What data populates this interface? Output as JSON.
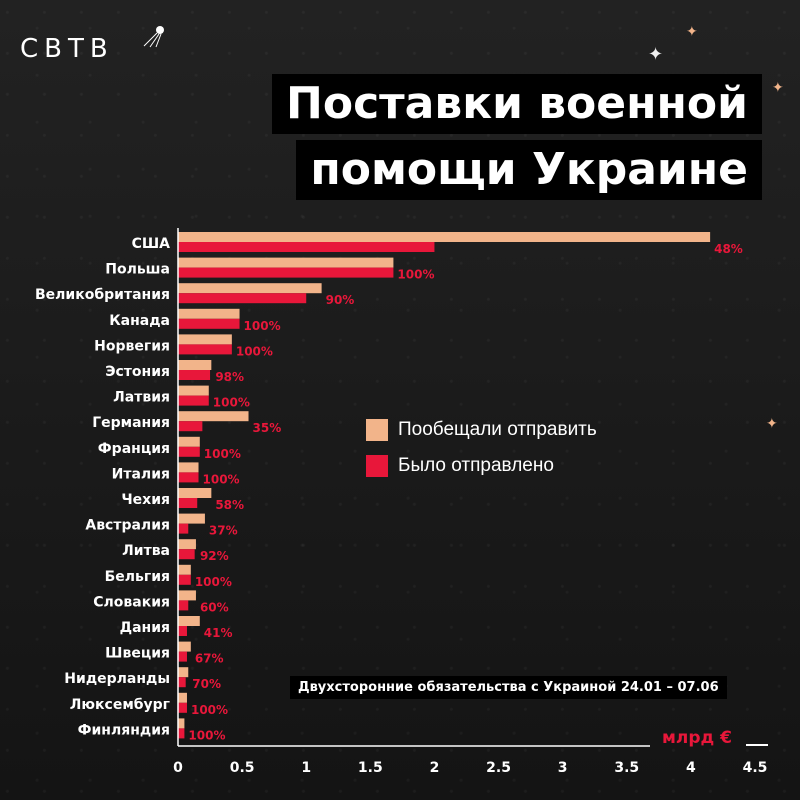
{
  "brand": {
    "logo_text": "СВТВ"
  },
  "title": {
    "line1": "Поставки военной",
    "line2": "помощи Украине"
  },
  "legend": {
    "promised_label": "Пообещали отправить",
    "sent_label": "Было отправлено"
  },
  "note": "Двухсторонние обязательства с Украиной 24.01 – 07.06",
  "colors": {
    "promised": "#f2b48a",
    "sent": "#e8173a",
    "background": "#1a1a1a",
    "text": "#ffffff"
  },
  "chart_data": {
    "type": "bar",
    "orientation": "horizontal",
    "categories": [
      "США",
      "Польша",
      "Великобритания",
      "Канада",
      "Норвегия",
      "Эстония",
      "Латвия",
      "Германия",
      "Франция",
      "Италия",
      "Чехия",
      "Австралия",
      "Литва",
      "Бельгия",
      "Словакия",
      "Дания",
      "Швеция",
      "Нидерланды",
      "Люксембург",
      "Финляндия"
    ],
    "series": [
      {
        "name": "Пообещали отправить",
        "values": [
          4.15,
          1.68,
          1.12,
          0.48,
          0.42,
          0.26,
          0.24,
          0.55,
          0.17,
          0.16,
          0.26,
          0.21,
          0.14,
          0.1,
          0.14,
          0.17,
          0.1,
          0.08,
          0.07,
          0.05
        ]
      },
      {
        "name": "Было отправлено",
        "values": [
          2.0,
          1.68,
          1.0,
          0.48,
          0.42,
          0.25,
          0.24,
          0.19,
          0.17,
          0.16,
          0.15,
          0.08,
          0.13,
          0.1,
          0.08,
          0.07,
          0.07,
          0.06,
          0.07,
          0.05
        ]
      }
    ],
    "percent_labels": [
      "48%",
      "100%",
      "90%",
      "100%",
      "100%",
      "98%",
      "100%",
      "35%",
      "100%",
      "100%",
      "58%",
      "37%",
      "92%",
      "100%",
      "60%",
      "41%",
      "67%",
      "70%",
      "100%",
      "100%"
    ],
    "xticks": [
      "0",
      "0.5",
      "1",
      "1.5",
      "2",
      "2.5",
      "3",
      "3.5",
      "4",
      "4.5"
    ],
    "xlim": [
      0,
      4.5
    ],
    "xlabel": "млрд €",
    "grid": false,
    "legend_position": "right"
  }
}
